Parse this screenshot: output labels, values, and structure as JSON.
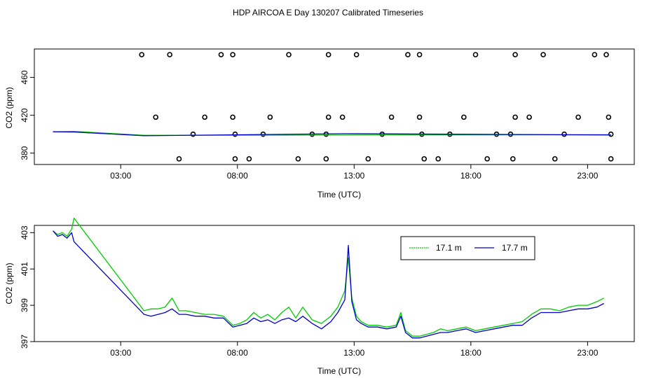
{
  "title": "HDP AIRCOA E  Day 130207  Calibrated Timeseries",
  "chart_data": [
    {
      "type": "scatter+line",
      "xlabel": "Time (UTC)",
      "ylabel": "CO2 (ppm)",
      "xlim": [
        -0.7,
        25.0
      ],
      "ylim": [
        368,
        490
      ],
      "xticks": [
        3,
        8,
        13,
        18,
        23
      ],
      "xtick_labels": [
        "03:00",
        "08:00",
        "13:00",
        "18:00",
        "23:00"
      ],
      "yticks": [
        380,
        420,
        460
      ],
      "yticks_labels": [
        "380",
        "420",
        "460"
      ],
      "calibration_points": [
        {
          "x": 3.9,
          "y": 484
        },
        {
          "x": 5.1,
          "y": 484
        },
        {
          "x": 7.3,
          "y": 484
        },
        {
          "x": 7.8,
          "y": 484
        },
        {
          "x": 10.2,
          "y": 484
        },
        {
          "x": 11.9,
          "y": 484
        },
        {
          "x": 13.1,
          "y": 484
        },
        {
          "x": 15.3,
          "y": 484
        },
        {
          "x": 15.8,
          "y": 484
        },
        {
          "x": 18.2,
          "y": 484
        },
        {
          "x": 19.9,
          "y": 484
        },
        {
          "x": 21.1,
          "y": 484
        },
        {
          "x": 23.3,
          "y": 484
        },
        {
          "x": 23.8,
          "y": 484
        },
        {
          "x": 4.5,
          "y": 418
        },
        {
          "x": 6.6,
          "y": 418
        },
        {
          "x": 7.8,
          "y": 418
        },
        {
          "x": 9.4,
          "y": 418
        },
        {
          "x": 11.9,
          "y": 418
        },
        {
          "x": 12.5,
          "y": 418
        },
        {
          "x": 14.6,
          "y": 418
        },
        {
          "x": 15.8,
          "y": 418
        },
        {
          "x": 17.7,
          "y": 418
        },
        {
          "x": 19.9,
          "y": 418
        },
        {
          "x": 20.5,
          "y": 418
        },
        {
          "x": 22.6,
          "y": 418
        },
        {
          "x": 23.9,
          "y": 418
        },
        {
          "x": 6.1,
          "y": 400
        },
        {
          "x": 7.9,
          "y": 400
        },
        {
          "x": 9.1,
          "y": 400
        },
        {
          "x": 11.2,
          "y": 400
        },
        {
          "x": 11.8,
          "y": 400
        },
        {
          "x": 14.2,
          "y": 400
        },
        {
          "x": 15.9,
          "y": 400
        },
        {
          "x": 17.1,
          "y": 400
        },
        {
          "x": 19.1,
          "y": 400
        },
        {
          "x": 19.7,
          "y": 400
        },
        {
          "x": 22.0,
          "y": 400
        },
        {
          "x": 24.0,
          "y": 400
        },
        {
          "x": 5.5,
          "y": 374
        },
        {
          "x": 7.9,
          "y": 374
        },
        {
          "x": 8.5,
          "y": 374
        },
        {
          "x": 10.6,
          "y": 374
        },
        {
          "x": 11.8,
          "y": 374
        },
        {
          "x": 13.6,
          "y": 374
        },
        {
          "x": 16.0,
          "y": 374
        },
        {
          "x": 16.6,
          "y": 374
        },
        {
          "x": 18.7,
          "y": 374
        },
        {
          "x": 19.8,
          "y": 374
        },
        {
          "x": 21.6,
          "y": 374
        },
        {
          "x": 24.0,
          "y": 374
        }
      ],
      "series": [
        {
          "name": "17.1 m",
          "color": "#00cc00",
          "x": [
            0.1,
            1.0,
            4.0,
            24.0
          ],
          "y": [
            402.5,
            403.0,
            398.8,
            399.5
          ]
        },
        {
          "name": "17.7 m",
          "color": "#0000cc",
          "x": [
            0.1,
            1.0,
            4.0,
            12.6,
            24.0
          ],
          "y": [
            402.5,
            402.3,
            398.4,
            400.5,
            399.2
          ]
        }
      ]
    },
    {
      "type": "line",
      "xlabel": "Time (UTC)",
      "ylabel": "CO2 (ppm)",
      "xlim": [
        -0.7,
        25.0
      ],
      "ylim": [
        397,
        403.4
      ],
      "xticks": [
        3,
        8,
        13,
        18,
        23
      ],
      "xtick_labels": [
        "03:00",
        "08:00",
        "13:00",
        "18:00",
        "23:00"
      ],
      "yticks": [
        397,
        399,
        401,
        403
      ],
      "yticks_labels": [
        "397",
        "399",
        "401",
        "403"
      ],
      "legend": {
        "entries": [
          "17.1 m",
          "17.7 m"
        ],
        "placement": "top-right"
      },
      "series": [
        {
          "name": "17.1 m",
          "color": "#00cc00",
          "x": [
            0.1,
            0.3,
            0.5,
            0.7,
            0.9,
            1.0,
            4.0,
            4.3,
            4.6,
            4.9,
            5.2,
            5.5,
            5.8,
            6.2,
            6.6,
            7.0,
            7.4,
            7.8,
            8.1,
            8.4,
            8.7,
            9.0,
            9.3,
            9.6,
            9.9,
            10.2,
            10.5,
            10.8,
            11.2,
            11.6,
            12.0,
            12.3,
            12.6,
            12.75,
            12.9,
            13.1,
            13.3,
            13.6,
            14.0,
            14.4,
            14.8,
            15.0,
            15.2,
            15.5,
            15.8,
            16.1,
            16.4,
            16.7,
            17.0,
            17.4,
            17.8,
            18.2,
            18.6,
            19.0,
            19.4,
            19.8,
            20.2,
            20.6,
            21.0,
            21.4,
            21.8,
            22.2,
            22.6,
            23.0,
            23.4,
            23.7
          ],
          "y": [
            403.1,
            402.9,
            403.0,
            402.8,
            403.2,
            403.8,
            398.7,
            398.8,
            398.8,
            398.9,
            399.4,
            398.7,
            398.7,
            398.6,
            398.5,
            398.5,
            398.4,
            397.9,
            398.0,
            398.2,
            398.6,
            398.3,
            398.5,
            398.2,
            398.6,
            398.9,
            398.3,
            398.9,
            398.2,
            398.0,
            398.4,
            398.9,
            399.8,
            401.6,
            399.4,
            398.4,
            398.1,
            397.9,
            397.9,
            397.8,
            397.9,
            398.6,
            397.6,
            397.3,
            397.3,
            397.4,
            397.5,
            397.7,
            397.6,
            397.7,
            397.8,
            397.6,
            397.7,
            397.8,
            397.9,
            398.0,
            398.1,
            398.5,
            398.8,
            398.8,
            398.7,
            398.9,
            399.0,
            399.0,
            399.2,
            399.4
          ]
        },
        {
          "name": "17.7 m",
          "color": "#0000cc",
          "x": [
            0.1,
            0.3,
            0.5,
            0.7,
            0.9,
            1.0,
            4.0,
            4.3,
            4.6,
            4.9,
            5.2,
            5.5,
            5.8,
            6.2,
            6.6,
            7.0,
            7.4,
            7.8,
            8.1,
            8.4,
            8.7,
            9.0,
            9.3,
            9.6,
            9.9,
            10.2,
            10.5,
            10.8,
            11.2,
            11.6,
            12.0,
            12.3,
            12.6,
            12.75,
            12.9,
            13.1,
            13.3,
            13.6,
            14.0,
            14.4,
            14.8,
            15.0,
            15.2,
            15.5,
            15.8,
            16.1,
            16.4,
            16.7,
            17.0,
            17.4,
            17.8,
            18.2,
            18.6,
            19.0,
            19.4,
            19.8,
            20.2,
            20.6,
            21.0,
            21.4,
            21.8,
            22.2,
            22.6,
            23.0,
            23.4,
            23.7
          ],
          "y": [
            403.1,
            402.8,
            402.9,
            402.7,
            403.0,
            402.5,
            398.5,
            398.4,
            398.5,
            398.6,
            398.8,
            398.5,
            398.5,
            398.4,
            398.4,
            398.3,
            398.3,
            397.8,
            397.9,
            398.0,
            398.3,
            398.1,
            398.2,
            398.0,
            398.2,
            398.3,
            398.1,
            398.4,
            398.0,
            397.7,
            398.1,
            398.6,
            399.3,
            402.3,
            399.2,
            398.2,
            398.0,
            397.8,
            397.8,
            397.7,
            397.8,
            398.4,
            397.5,
            397.2,
            397.2,
            397.3,
            397.4,
            397.5,
            397.5,
            397.6,
            397.7,
            397.5,
            397.6,
            397.7,
            397.8,
            397.9,
            397.9,
            398.3,
            398.6,
            398.6,
            398.6,
            398.7,
            398.8,
            398.8,
            398.9,
            399.1
          ]
        }
      ]
    }
  ]
}
